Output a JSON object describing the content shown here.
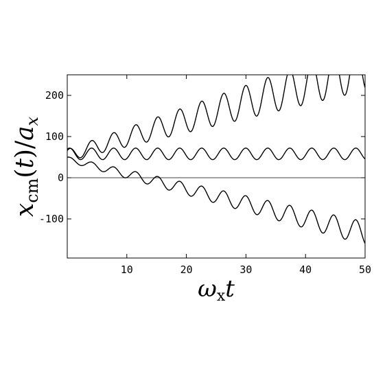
{
  "chart_data": {
    "type": "line",
    "title": "",
    "xlabel": "ω_x t",
    "ylabel": "x_cm(t)/a_x",
    "xlim": [
      0,
      50
    ],
    "ylim": [
      -195,
      250
    ],
    "xticks": [
      10,
      20,
      30,
      40,
      50
    ],
    "yticks": [
      -100,
      0,
      100,
      200
    ],
    "grid": false,
    "zero_line": true,
    "legend": "none",
    "series_model": "y = offset + drift*x + amp(x)*sin(omega*x + phase)",
    "series": [
      {
        "offset": 55,
        "drift": 4.3,
        "omega": 1.7,
        "phase": 0.9,
        "amp_start": 14,
        "amp_end": 58,
        "sample_points": [
          [
            0,
            50
          ],
          [
            10,
            110
          ],
          [
            20,
            160
          ],
          [
            30,
            200
          ],
          [
            40,
            240
          ],
          [
            50,
            220
          ]
        ]
      },
      {
        "offset": 58,
        "drift": 0.0,
        "omega": 1.7,
        "phase": 0.9,
        "amp_start": 14,
        "amp_end": 14,
        "sample_points": [
          [
            0,
            50
          ],
          [
            10,
            60
          ],
          [
            20,
            60
          ],
          [
            30,
            60
          ],
          [
            40,
            60
          ],
          [
            50,
            60
          ]
        ]
      },
      {
        "offset": 45,
        "drift": -3.6,
        "omega": 1.7,
        "phase": 0.9,
        "amp_start": 6,
        "amp_end": 28,
        "sample_points": [
          [
            0,
            45
          ],
          [
            10,
            30
          ],
          [
            15,
            0
          ],
          [
            20,
            -20
          ],
          [
            30,
            -60
          ],
          [
            40,
            -100
          ],
          [
            50,
            -130
          ]
        ]
      }
    ]
  }
}
